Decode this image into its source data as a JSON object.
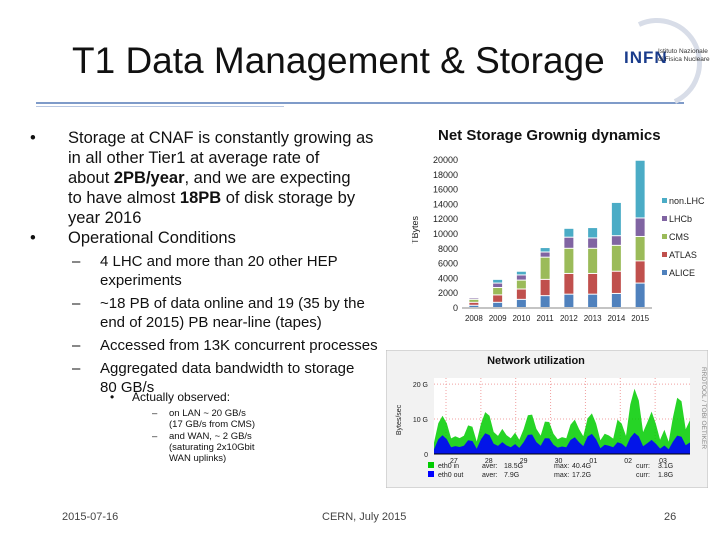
{
  "slide": {
    "title": "T1 Data Management & Storage",
    "bullets": [
      {
        "bullet": "•",
        "text_parts": [
          "Storage at CNAF is constantly growing as",
          "in all other Tier1 at average rate of",
          "about 2PB/year, and we are expecting",
          "to have almost 18PB of disk storage by",
          "year 2016"
        ]
      },
      {
        "bullet": "•",
        "text_parts": [
          "Operational Conditions"
        ]
      }
    ],
    "sub_bullets": [
      {
        "dash": "–",
        "lines": [
          "4 LHC and more than 20 other HEP",
          "experiments"
        ]
      },
      {
        "dash": "–",
        "lines": [
          "~18 PB of data online and 19 (35 by the",
          "end of 2015) PB near-line (tapes)"
        ]
      },
      {
        "dash": "–",
        "lines": [
          "Accessed from 13K concurrent processes"
        ]
      },
      {
        "dash": "–",
        "lines": [
          "Aggregated data bandwidth to storage",
          "80 GB/s"
        ]
      }
    ],
    "observed_title": "Actually observed:",
    "observed_bullet": "•",
    "observed_items": [
      {
        "dash": "–",
        "lines": [
          "on LAN ~ 20 GB/s",
          "(17 GB/s from CMS)"
        ]
      },
      {
        "dash": "–",
        "lines": [
          "and WAN, ~ 2 GB/s",
          "(saturating 2x10Gbit",
          "WAN uplinks)"
        ]
      }
    ],
    "footer_left": "2015-07-16",
    "footer_center": "CERN, July 2015",
    "page_number": "26"
  },
  "logo": {
    "mark": "INFN",
    "institute": [
      "Istituto Nazionale",
      "di Fisica Nucleare"
    ]
  },
  "chart_data": [
    {
      "type": "bar",
      "stacked": true,
      "title": "Net Storage Grownig dynamics",
      "ylabel": "TBytes",
      "xlabel": "",
      "categories": [
        "2008",
        "2009",
        "2010",
        "2011",
        "2012",
        "2013",
        "2014",
        "2015"
      ],
      "ylim": [
        0,
        20000
      ],
      "yticks": [
        0,
        2000,
        4000,
        6000,
        8000,
        10000,
        12000,
        14000,
        16000,
        18000,
        20000
      ],
      "legend_position": "right",
      "series": [
        {
          "name": "ALICE",
          "color": "#4f81bd",
          "values": [
            300,
            700,
            1100,
            1600,
            1800,
            1800,
            1900,
            3300
          ]
        },
        {
          "name": "ATLAS",
          "color": "#c0504d",
          "values": [
            400,
            1000,
            1400,
            2200,
            2800,
            2800,
            3000,
            3000
          ]
        },
        {
          "name": "CMS",
          "color": "#9bbb59",
          "values": [
            400,
            1000,
            1200,
            3000,
            3400,
            3400,
            3500,
            3300
          ]
        },
        {
          "name": "LHCb",
          "color": "#8064a2",
          "values": [
            200,
            600,
            700,
            700,
            1500,
            1400,
            1300,
            2500
          ]
        },
        {
          "name": "non.LHC",
          "color": "#4bacc6",
          "values": [
            100,
            500,
            500,
            600,
            1200,
            1400,
            4500,
            7800
          ]
        }
      ]
    },
    {
      "type": "area",
      "title": "Network utilization",
      "ylabel": "Bytes/sec",
      "right_label": "RRDTOOL / TOBI OETIKER",
      "categories": [
        "27",
        "28",
        "29",
        "30",
        "01",
        "02",
        "03"
      ],
      "yticks": [
        "0",
        "10 G",
        "20 G"
      ],
      "grid": true,
      "series": [
        {
          "name": "eth0 in",
          "color": "#00cc00",
          "aver": "18.5G",
          "max": "40.4G",
          "curr": "3.1G"
        },
        {
          "name": "eth0 out",
          "color": "#0000ff",
          "aver": "7.9G",
          "max": "17.2G",
          "curr": "1.8G"
        }
      ],
      "legend": {
        "avg_label": "aver:",
        "max_label": "max:",
        "curr_label": "curr:"
      }
    }
  ]
}
